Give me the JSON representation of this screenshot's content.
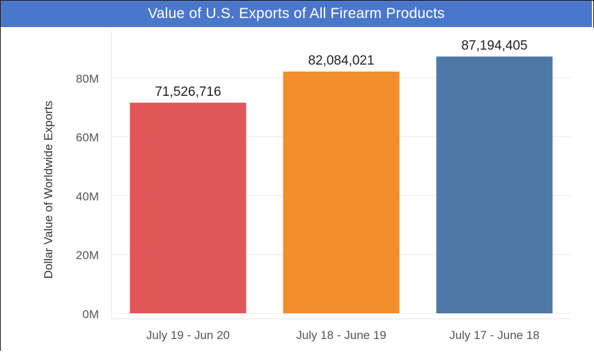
{
  "title": "Value of U.S. Exports of All Firearm Products",
  "colors": {
    "title_bar": "#4a77cc",
    "title_text": "#ffffff",
    "grid": "#ececec",
    "axis_text": "#555555"
  },
  "chart_data": {
    "type": "bar",
    "title": "Value of U.S. Exports of All Firearm Products",
    "xlabel": "",
    "ylabel": "Dollar Value of Worldwide Exports",
    "categories": [
      "July 19 - Jun 20",
      "July 18 - June 19",
      "July 17 - June 18"
    ],
    "values": [
      71526716,
      82084021,
      87194405
    ],
    "value_labels": [
      "71,526,716",
      "82,084,021",
      "87,194,405"
    ],
    "bar_colors": [
      "#e15759",
      "#f28e2b",
      "#4e79a7"
    ],
    "ylim": [
      0,
      92000000
    ],
    "yticks": [
      0,
      20000000,
      40000000,
      60000000,
      80000000
    ],
    "ytick_labels": [
      "0M",
      "20M",
      "40M",
      "60M",
      "80M"
    ],
    "grid": true,
    "legend": "none"
  }
}
